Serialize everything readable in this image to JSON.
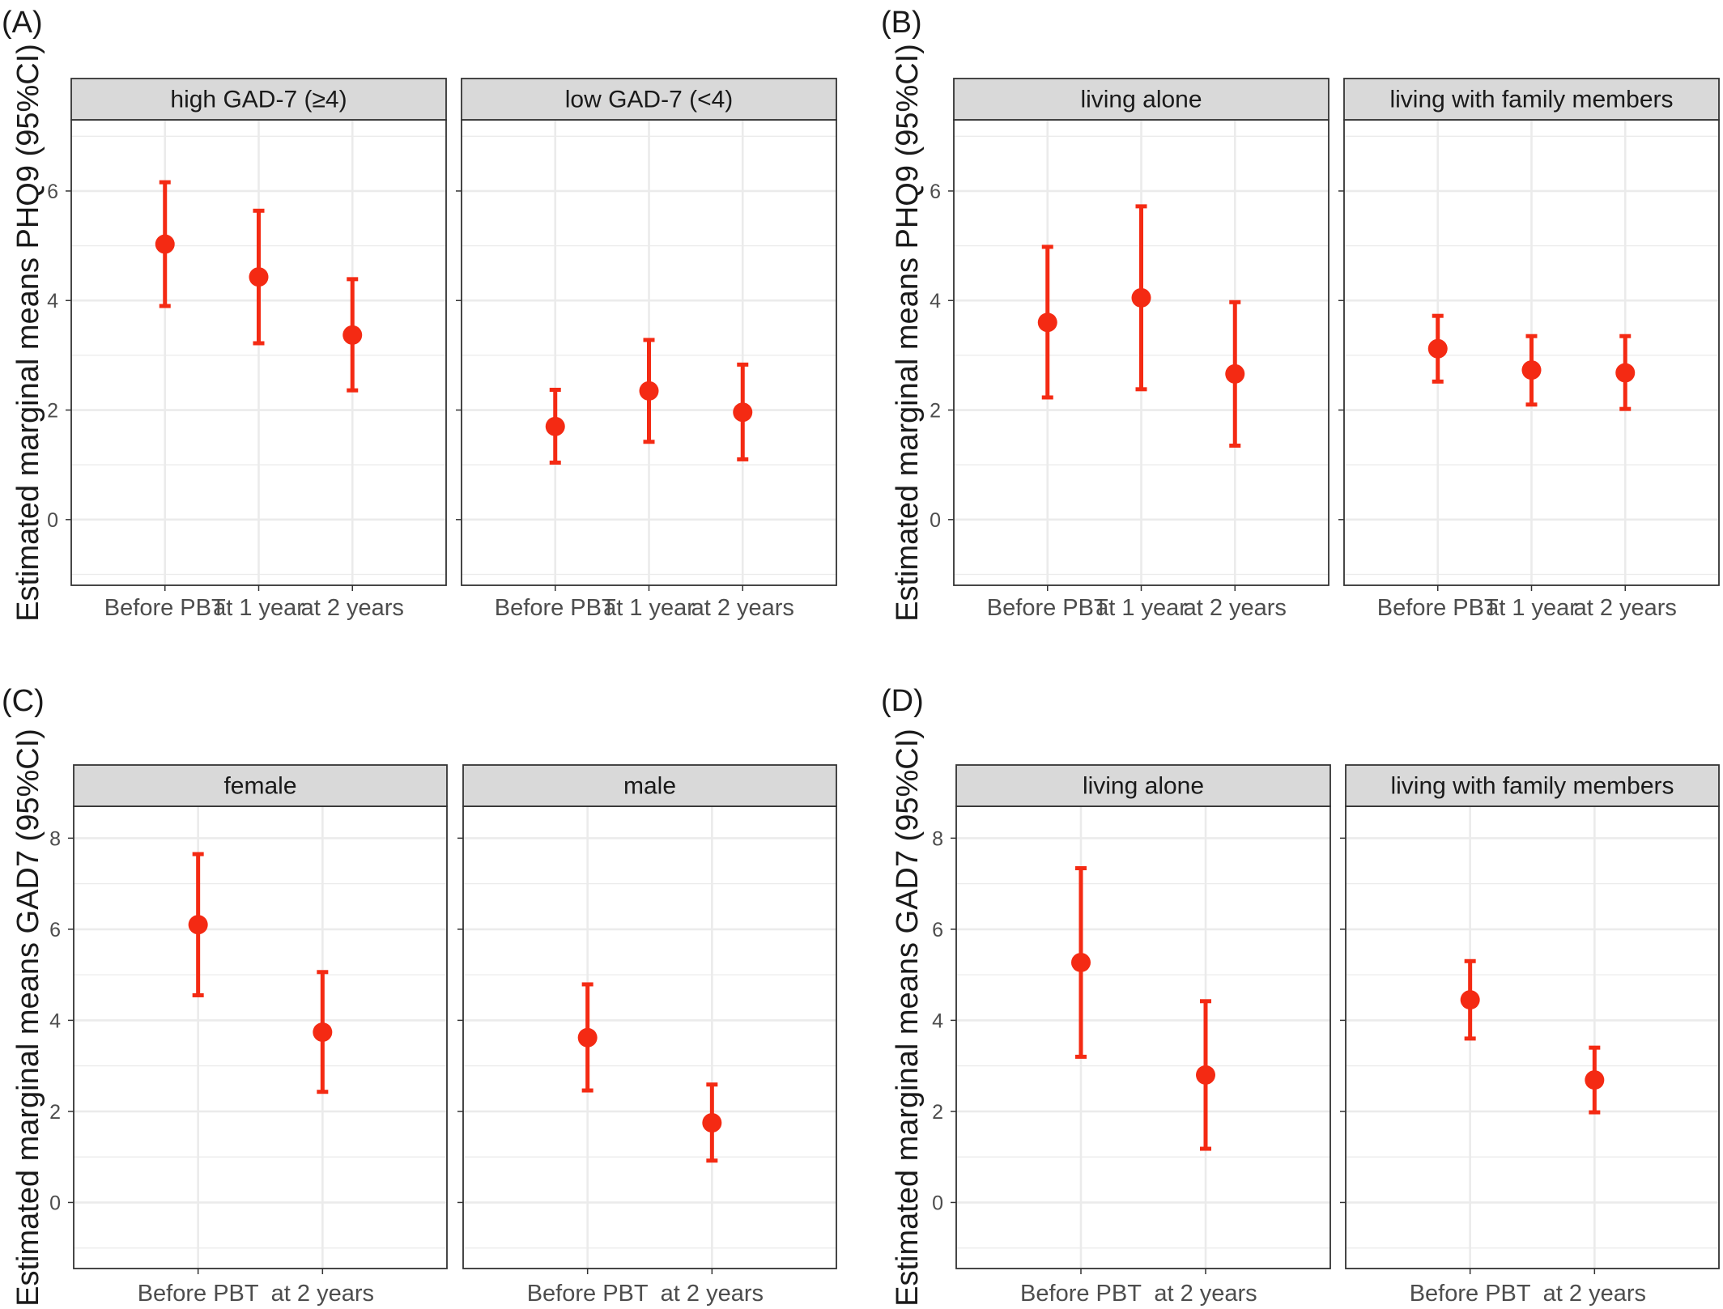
{
  "colors": {
    "point": "#f42a13",
    "grid": "#ebebeb",
    "strip_fill": "#d9d9d9",
    "border": "#333333"
  },
  "chart_data": [
    {
      "panel": "(A)",
      "type": "scatter",
      "ylabel": "Estimated marginal means PHQ9 (95%CI)",
      "ylim": [
        -1.2,
        7.3
      ],
      "yticks": [
        0,
        2,
        4,
        6
      ],
      "grid": true,
      "categories": [
        "Before PBT",
        "at 1 year",
        "at 2 years"
      ],
      "facets": [
        {
          "strip": "high GAD-7 (≥4)",
          "points": [
            {
              "x": "Before PBT",
              "y": 5.03,
              "lower": 3.9,
              "upper": 6.16
            },
            {
              "x": "at 1 year",
              "y": 4.43,
              "lower": 3.22,
              "upper": 5.64
            },
            {
              "x": "at 2 years",
              "y": 3.37,
              "lower": 2.36,
              "upper": 4.39
            }
          ]
        },
        {
          "strip": "low GAD-7 (<4)",
          "points": [
            {
              "x": "Before PBT",
              "y": 1.7,
              "lower": 1.04,
              "upper": 2.37
            },
            {
              "x": "at 1 year",
              "y": 2.35,
              "lower": 1.42,
              "upper": 3.28
            },
            {
              "x": "at 2 years",
              "y": 1.96,
              "lower": 1.1,
              "upper": 2.83
            }
          ]
        }
      ]
    },
    {
      "panel": "(B)",
      "type": "scatter",
      "ylabel": "Estimated marginal means PHQ9 (95%CI)",
      "ylim": [
        -1.2,
        7.3
      ],
      "yticks": [
        0,
        2,
        4,
        6
      ],
      "grid": true,
      "categories": [
        "Before PBT",
        "at 1 year",
        "at 2 years"
      ],
      "facets": [
        {
          "strip": "living alone",
          "points": [
            {
              "x": "Before PBT",
              "y": 3.6,
              "lower": 2.23,
              "upper": 4.98
            },
            {
              "x": "at 1 year",
              "y": 4.05,
              "lower": 2.38,
              "upper": 5.72
            },
            {
              "x": "at 2 years",
              "y": 2.66,
              "lower": 1.35,
              "upper": 3.97
            }
          ]
        },
        {
          "strip": "living with family members",
          "points": [
            {
              "x": "Before PBT",
              "y": 3.12,
              "lower": 2.52,
              "upper": 3.72
            },
            {
              "x": "at 1 year",
              "y": 2.73,
              "lower": 2.1,
              "upper": 3.35
            },
            {
              "x": "at 2 years",
              "y": 2.68,
              "lower": 2.02,
              "upper": 3.35
            }
          ]
        }
      ]
    },
    {
      "panel": "(C)",
      "type": "scatter",
      "ylabel": "Estimated marginal means GAD7 (95%CI)",
      "ylim": [
        -1.45,
        8.7
      ],
      "yticks": [
        0,
        2,
        4,
        6,
        8
      ],
      "grid": true,
      "categories": [
        "Before PBT",
        "at 2 years"
      ],
      "facets": [
        {
          "strip": "female",
          "points": [
            {
              "x": "Before PBT",
              "y": 6.1,
              "lower": 4.55,
              "upper": 7.65
            },
            {
              "x": "at 2 years",
              "y": 3.74,
              "lower": 2.43,
              "upper": 5.06
            }
          ]
        },
        {
          "strip": "male",
          "points": [
            {
              "x": "Before PBT",
              "y": 3.62,
              "lower": 2.46,
              "upper": 4.79
            },
            {
              "x": "at 2 years",
              "y": 1.75,
              "lower": 0.92,
              "upper": 2.59
            }
          ]
        }
      ]
    },
    {
      "panel": "(D)",
      "type": "scatter",
      "ylabel": "Estimated marginal means GAD7 (95%CI)",
      "ylim": [
        -1.45,
        8.7
      ],
      "yticks": [
        0,
        2,
        4,
        6,
        8
      ],
      "grid": true,
      "categories": [
        "Before PBT",
        "at 2 years"
      ],
      "facets": [
        {
          "strip": "living alone",
          "points": [
            {
              "x": "Before PBT",
              "y": 5.27,
              "lower": 3.2,
              "upper": 7.34
            },
            {
              "x": "at 2 years",
              "y": 2.8,
              "lower": 1.18,
              "upper": 4.42
            }
          ]
        },
        {
          "strip": "living with family members",
          "points": [
            {
              "x": "Before PBT",
              "y": 4.45,
              "lower": 3.6,
              "upper": 5.3
            },
            {
              "x": "at 2 years",
              "y": 2.69,
              "lower": 1.98,
              "upper": 3.4
            }
          ]
        }
      ]
    }
  ]
}
